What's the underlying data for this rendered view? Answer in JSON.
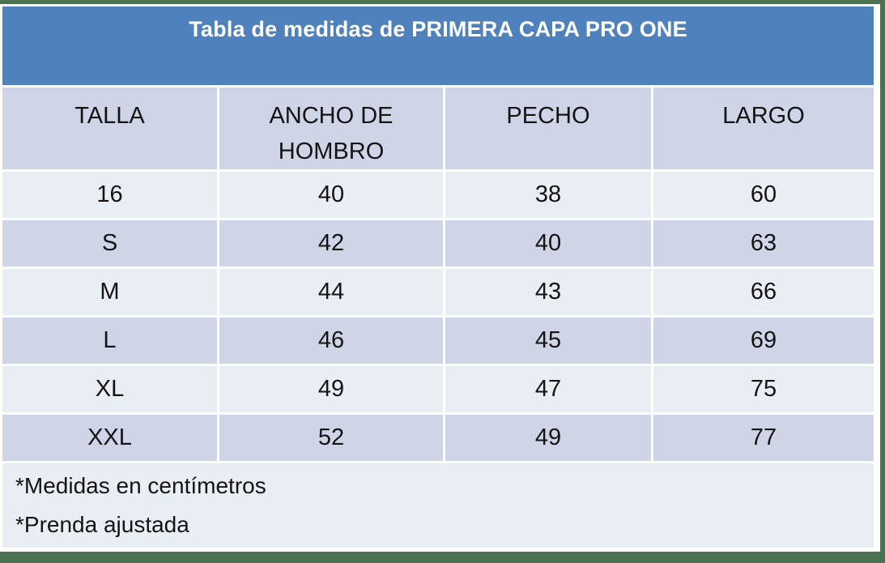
{
  "title": "Tabla de medidas de PRIMERA CAPA PRO ONE",
  "table": {
    "columns": [
      "TALLA",
      "ANCHO DE HOMBRO",
      "PECHO",
      "LARGO"
    ],
    "rows": [
      {
        "talla": "16",
        "ancho_de_hombro": "40",
        "pecho": "38",
        "largo": "60"
      },
      {
        "talla": "S",
        "ancho_de_hombro": "42",
        "pecho": "40",
        "largo": "63"
      },
      {
        "talla": "M",
        "ancho_de_hombro": "44",
        "pecho": "43",
        "largo": "66"
      },
      {
        "talla": "L",
        "ancho_de_hombro": "46",
        "pecho": "45",
        "largo": "69"
      },
      {
        "talla": "XL",
        "ancho_de_hombro": "49",
        "pecho": "47",
        "largo": "75"
      },
      {
        "talla": "XXL",
        "ancho_de_hombro": "52",
        "pecho": "49",
        "largo": "77"
      }
    ]
  },
  "footnotes": [
    "*Medidas en centímetros",
    "*Prenda ajustada"
  ],
  "units": "centimetros",
  "colors": {
    "title_background": "#4F81BD",
    "title_text": "#FFFFFF",
    "band_dark": "#CFD5E7",
    "band_light": "#E9EDF4",
    "frame_green": "#4A7150",
    "body_text": "#141414"
  }
}
